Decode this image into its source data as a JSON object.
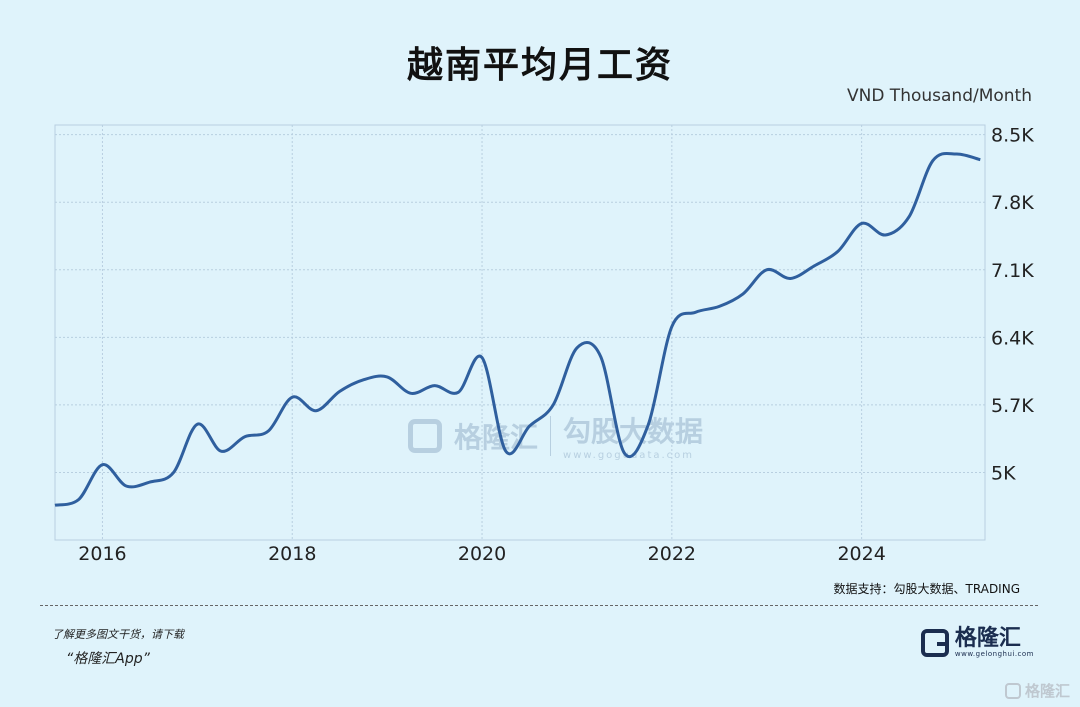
{
  "title": "越南平均月工资",
  "unit_label": "VND Thousand/Month",
  "source": "数据支持：勾股大数据、TRADING",
  "footer": {
    "line1": "了解更多图文干货，请下载",
    "line2": "“格隆汇App”"
  },
  "brand": {
    "name": "格隆汇",
    "url": "www.gelonghui.com"
  },
  "watermark": {
    "brand1": "格隆汇",
    "brand2": "勾股大数据",
    "url": "www.gogudata.com"
  },
  "corner_logo": "格隆汇",
  "colors": {
    "background": "#dff3fb",
    "line": "#2f5f9e",
    "grid": "#b8cfe0"
  },
  "chart_data": {
    "type": "line",
    "x_axis": {
      "ticks": [
        "2016",
        "2018",
        "2020",
        "2022",
        "2024"
      ],
      "range": [
        2015.5,
        2025.3
      ]
    },
    "y_axis": {
      "ticks": [
        "5K",
        "5.7K",
        "6.4K",
        "7.1K",
        "7.8K",
        "8.5K"
      ],
      "tick_values": [
        5000,
        5700,
        6400,
        7100,
        7800,
        8500
      ],
      "range": [
        4300,
        8600
      ],
      "position": "right"
    },
    "grid": true,
    "series": [
      {
        "points": [
          [
            2015.5,
            4660
          ],
          [
            2015.75,
            4720
          ],
          [
            2016.0,
            5080
          ],
          [
            2016.25,
            4860
          ],
          [
            2016.5,
            4900
          ],
          [
            2016.75,
            5000
          ],
          [
            2017.0,
            5500
          ],
          [
            2017.25,
            5220
          ],
          [
            2017.5,
            5370
          ],
          [
            2017.75,
            5430
          ],
          [
            2018.0,
            5780
          ],
          [
            2018.25,
            5640
          ],
          [
            2018.5,
            5840
          ],
          [
            2018.75,
            5960
          ],
          [
            2019.0,
            5990
          ],
          [
            2019.25,
            5820
          ],
          [
            2019.5,
            5900
          ],
          [
            2019.75,
            5830
          ],
          [
            2020.0,
            6190
          ],
          [
            2020.25,
            5220
          ],
          [
            2020.5,
            5480
          ],
          [
            2020.75,
            5700
          ],
          [
            2021.0,
            6290
          ],
          [
            2021.25,
            6200
          ],
          [
            2021.5,
            5200
          ],
          [
            2021.75,
            5490
          ],
          [
            2022.0,
            6510
          ],
          [
            2022.25,
            6660
          ],
          [
            2022.5,
            6720
          ],
          [
            2022.75,
            6850
          ],
          [
            2023.0,
            7100
          ],
          [
            2023.25,
            7010
          ],
          [
            2023.5,
            7140
          ],
          [
            2023.75,
            7290
          ],
          [
            2024.0,
            7580
          ],
          [
            2024.25,
            7460
          ],
          [
            2024.5,
            7650
          ],
          [
            2024.75,
            8230
          ],
          [
            2025.0,
            8300
          ],
          [
            2025.25,
            8240
          ]
        ]
      }
    ]
  }
}
